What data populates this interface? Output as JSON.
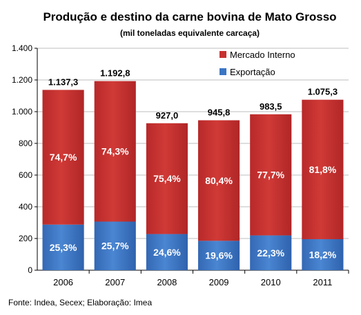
{
  "chart_data": {
    "type": "bar",
    "stacked": true,
    "title": "Produção e destino da carne bovina de Mato Grosso",
    "subtitle": "(mil toneladas equivalente carcaça)",
    "source": "Fonte: Indea, Secex; Elaboração: Imea",
    "categories": [
      "2006",
      "2007",
      "2008",
      "2009",
      "2010",
      "2011"
    ],
    "ylim": [
      0,
      1400
    ],
    "yticks": [
      0,
      200,
      400,
      600,
      800,
      1000,
      1200,
      1400
    ],
    "ytick_labels": [
      "0",
      "200",
      "400",
      "600",
      "800",
      "1.000",
      "1.200",
      "1.400"
    ],
    "grid": true,
    "legend_position": "top-right",
    "totals": [
      1137.3,
      1192.8,
      927.0,
      945.8,
      983.5,
      1075.3
    ],
    "total_labels": [
      "1.137,3",
      "1.192,8",
      "927,0",
      "945,8",
      "983,5",
      "1.075,3"
    ],
    "series": [
      {
        "name": "Exportação",
        "color": "#3b76c4",
        "share_pct": [
          25.3,
          25.7,
          24.6,
          19.6,
          22.3,
          18.2
        ],
        "labels": [
          "25,3%",
          "25,7%",
          "24,6%",
          "19,6%",
          "22,3%",
          "18,2%"
        ]
      },
      {
        "name": "Mercado Interno",
        "color": "#c73230",
        "share_pct": [
          74.7,
          74.3,
          75.4,
          80.4,
          77.7,
          81.8
        ],
        "labels": [
          "74,7%",
          "74,3%",
          "75,4%",
          "80,4%",
          "77,7%",
          "81,8%"
        ]
      }
    ]
  }
}
